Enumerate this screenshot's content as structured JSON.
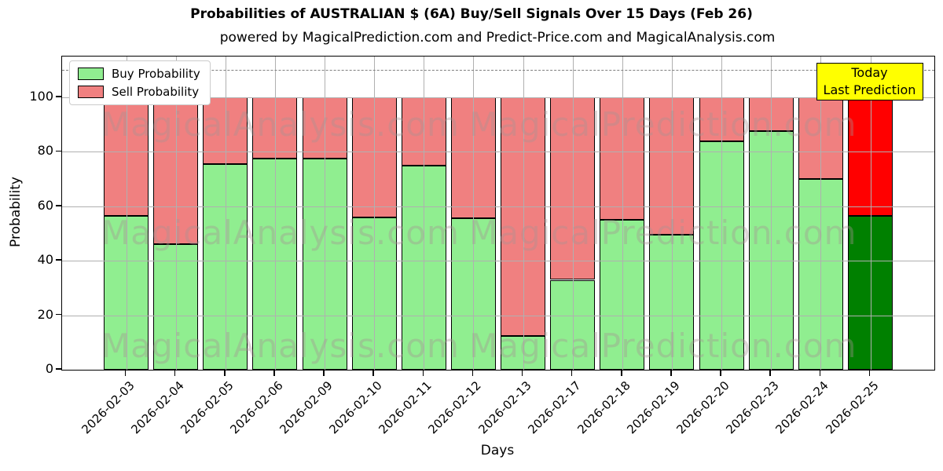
{
  "title": "Probabilities of AUSTRALIAN $ (6A) Buy/Sell Signals Over 15 Days (Feb 26)",
  "subtitle": "powered by MagicalPrediction.com and Predict-Price.com and MagicalAnalysis.com",
  "legend": {
    "items": [
      {
        "label": "Buy Probability",
        "color": "#90EE90"
      },
      {
        "label": "Sell Probability",
        "color": "#F08080"
      }
    ]
  },
  "annotation": {
    "line1": "Today",
    "line2": "Last Prediction",
    "bg_color": "#FFFF00"
  },
  "watermarks": {
    "left_text": "MagicalAnalysis.com",
    "right_text": "MagicalPrediction.com"
  },
  "chart_data": {
    "type": "bar",
    "stacked": true,
    "title": "Probabilities of AUSTRALIAN $ (6A) Buy/Sell Signals Over 15 Days (Feb 26)",
    "xlabel": "Days",
    "ylabel": "Probability",
    "categories": [
      "2026-02-03",
      "2026-02-04",
      "2026-02-05",
      "2026-02-06",
      "2026-02-09",
      "2026-02-10",
      "2026-02-11",
      "2026-02-12",
      "2026-02-13",
      "2026-02-17",
      "2026-02-18",
      "2026-02-19",
      "2026-02-20",
      "2026-02-23",
      "2026-02-24",
      "2026-02-25"
    ],
    "series": [
      {
        "name": "Buy Probability",
        "color": "#90EE90",
        "values": [
          56.5,
          46,
          75.5,
          77.5,
          77.5,
          56,
          75,
          55.5,
          12.5,
          33,
          55,
          49.5,
          84,
          87.5,
          70,
          56.5
        ]
      },
      {
        "name": "Sell Probability",
        "color": "#F08080",
        "values": [
          43.5,
          54,
          24.5,
          22.5,
          22.5,
          44,
          25,
          44.5,
          87.5,
          67,
          45,
          50.5,
          16,
          12.5,
          30,
          43.5
        ]
      }
    ],
    "today": {
      "index": 15,
      "buy_color": "#008000",
      "sell_color": "#FF0000",
      "label": "Today Last Prediction"
    },
    "yticks": [
      0,
      20,
      40,
      60,
      80,
      100
    ],
    "ylim": [
      0,
      115
    ],
    "dashed_line_y": 110,
    "grid": true,
    "legend_position": "upper-left",
    "bar_edge_color": "#000000",
    "grid_color": "#B0B0B0",
    "dashed_line_color": "#7F7F7F"
  }
}
